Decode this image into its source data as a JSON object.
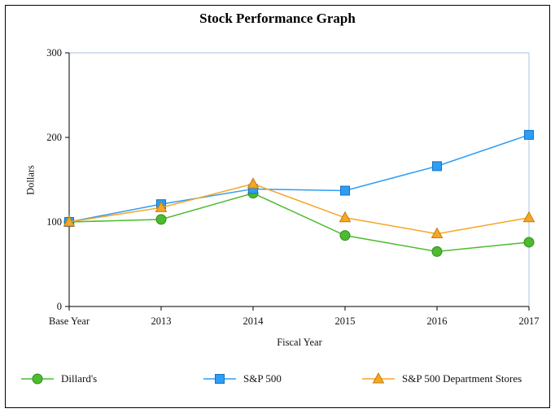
{
  "chart_data": {
    "type": "line",
    "title": "Stock Performance Graph",
    "xlabel": "Fiscal Year",
    "ylabel": "Dollars",
    "ylim": [
      0,
      300
    ],
    "yticks": [
      0,
      100,
      200,
      300
    ],
    "categories": [
      "Base Year",
      "2013",
      "2014",
      "2015",
      "2016",
      "2017"
    ],
    "series": [
      {
        "name": "Dillard's",
        "marker": "circle",
        "color": "#4cbb2f",
        "edge": "#2f8f1c",
        "values": [
          100,
          103,
          134,
          84,
          65,
          76
        ]
      },
      {
        "name": "S&P 500",
        "marker": "square",
        "color": "#2e9df4",
        "edge": "#1173c4",
        "values": [
          100,
          121,
          139,
          137,
          166,
          203
        ]
      },
      {
        "name": "S&P 500 Department Stores",
        "marker": "triangle",
        "color": "#f5a623",
        "edge": "#c27e0e",
        "values": [
          100,
          117,
          145,
          105,
          86,
          105
        ]
      }
    ],
    "legend_position": "bottom",
    "grid": false,
    "plot_border_color": "#aac4e2",
    "axis_color": "#000000"
  }
}
